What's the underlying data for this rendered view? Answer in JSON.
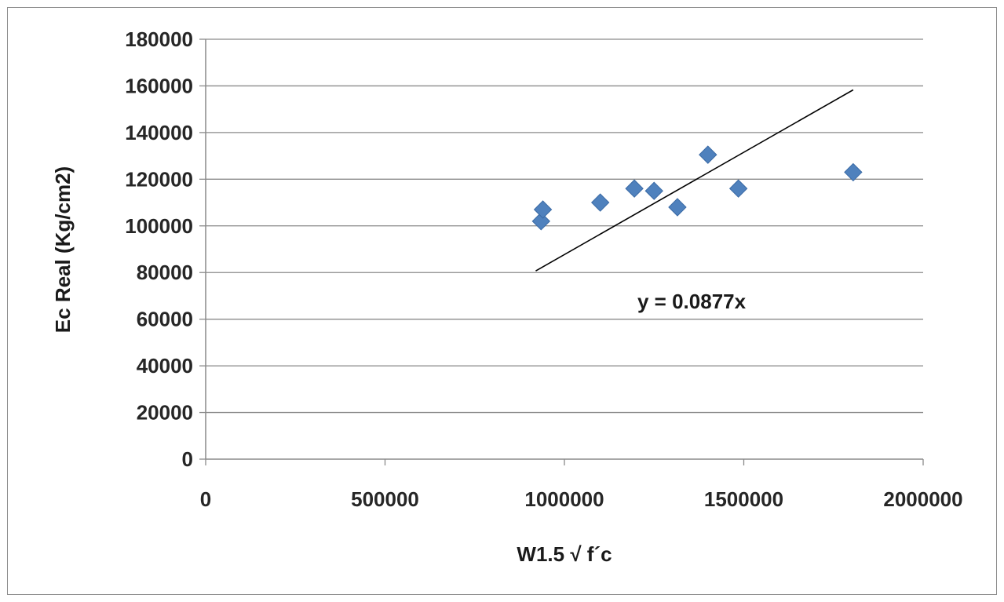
{
  "chart_data": {
    "type": "scatter",
    "title": "",
    "xlabel": "W1.5 √ f´c",
    "ylabel": "Ec Real (Kg/cm2)",
    "xlim": [
      0,
      2000000
    ],
    "ylim": [
      0,
      180000
    ],
    "x_ticks": [
      "0",
      "500000",
      "1000000",
      "1500000",
      "2000000"
    ],
    "y_ticks": [
      "0",
      "20000",
      "40000",
      "60000",
      "80000",
      "100000",
      "120000",
      "140000",
      "160000",
      "180000"
    ],
    "grid": "horizontal",
    "series": [
      {
        "marker": "diamond",
        "color": "#4F81BD",
        "points": [
          {
            "x": 935000,
            "y": 102000
          },
          {
            "x": 940000,
            "y": 107000
          },
          {
            "x": 1100000,
            "y": 110000
          },
          {
            "x": 1195000,
            "y": 116000
          },
          {
            "x": 1250000,
            "y": 115000
          },
          {
            "x": 1315000,
            "y": 108000
          },
          {
            "x": 1400000,
            "y": 130500
          },
          {
            "x": 1485000,
            "y": 116000
          },
          {
            "x": 1805000,
            "y": 123000
          }
        ]
      }
    ],
    "trendline": {
      "slope": 0.0877,
      "x_start": 920000,
      "x_end": 1805000,
      "color": "#000000",
      "label": "y = 0.0877x"
    }
  }
}
